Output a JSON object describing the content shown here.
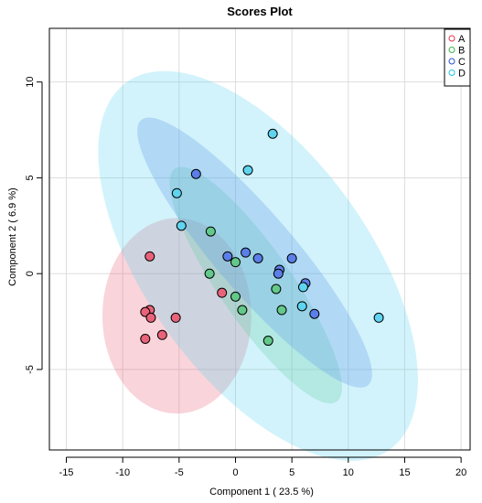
{
  "chart_data": {
    "type": "scatter",
    "title": "Scores Plot",
    "xlabel": "Component 1 ( 23.5 %)",
    "ylabel": "Component 2 ( 6.9 %)",
    "xlim": [
      -16.5,
      20.8
    ],
    "ylim": [
      -9.2,
      12.8
    ],
    "x_ticks": [
      -15,
      -10,
      -5,
      0,
      5,
      10,
      15,
      20
    ],
    "y_ticks": [
      -5,
      0,
      5,
      10
    ],
    "grid": true,
    "legend_position": "top-right",
    "series": [
      {
        "name": "A",
        "color": "#e0374f",
        "fill_color": "#e8637a",
        "ellipse": {
          "center": [
            -5.2,
            -2.2
          ],
          "rx": 6.6,
          "ry": 5.1,
          "angle_deg": 0
        },
        "points": [
          [
            -7.6,
            0.9
          ],
          [
            -7.6,
            -1.9
          ],
          [
            -8.0,
            -2.0
          ],
          [
            -7.5,
            -2.3
          ],
          [
            -5.3,
            -2.3
          ],
          [
            -6.5,
            -3.2
          ],
          [
            -8.0,
            -3.4
          ],
          [
            -1.2,
            -1.0
          ]
        ]
      },
      {
        "name": "B",
        "color": "#3bb44a",
        "fill_color": "#63c98a",
        "ellipse": {
          "center": [
            1.8,
            -0.6
          ],
          "rx": 9.5,
          "ry": 2.5,
          "angle_deg": -38
        },
        "points": [
          [
            -2.2,
            2.2
          ],
          [
            0.0,
            0.6
          ],
          [
            -2.3,
            0.0
          ],
          [
            0.0,
            -1.2
          ],
          [
            3.6,
            -0.8
          ],
          [
            0.6,
            -1.9
          ],
          [
            4.1,
            -1.9
          ],
          [
            2.9,
            -3.5
          ]
        ]
      },
      {
        "name": "C",
        "color": "#2a4fd6",
        "fill_color": "#5b7fe8",
        "ellipse": {
          "center": [
            1.7,
            1.1
          ],
          "rx": 12.3,
          "ry": 2.6,
          "angle_deg": -33
        },
        "points": [
          [
            -3.5,
            5.2
          ],
          [
            -0.7,
            0.9
          ],
          [
            0.9,
            1.1
          ],
          [
            2.0,
            0.8
          ],
          [
            3.9,
            0.2
          ],
          [
            3.8,
            0.0
          ],
          [
            5.0,
            0.8
          ],
          [
            6.2,
            -0.5
          ],
          [
            7.0,
            -2.1
          ]
        ]
      },
      {
        "name": "D",
        "color": "#1fc4e6",
        "fill_color": "#5ed4f0",
        "ellipse": {
          "center": [
            2.0,
            0.4
          ],
          "rx": 15.8,
          "ry": 7.4,
          "angle_deg": -30
        },
        "points": [
          [
            3.3,
            7.3
          ],
          [
            1.1,
            5.4
          ],
          [
            -5.2,
            4.2
          ],
          [
            -4.8,
            2.5
          ],
          [
            6.0,
            -0.7
          ],
          [
            5.9,
            -1.7
          ],
          [
            12.7,
            -2.3
          ]
        ]
      }
    ]
  }
}
